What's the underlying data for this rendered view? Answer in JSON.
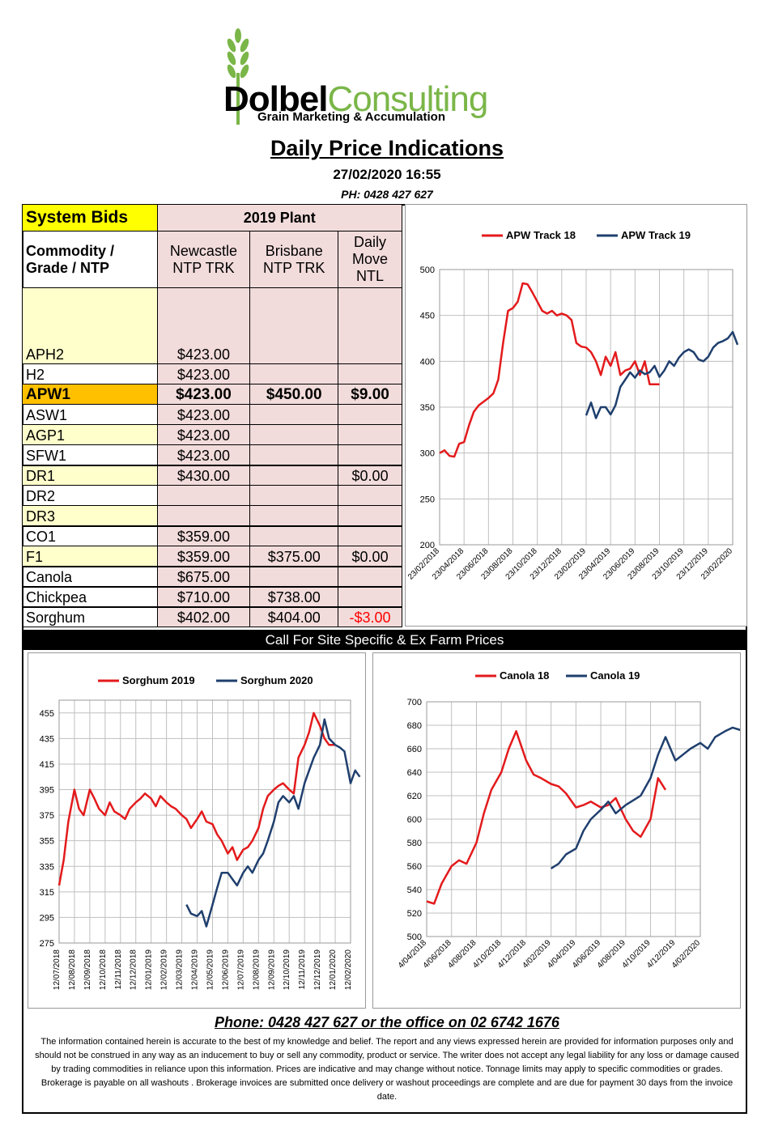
{
  "logo": {
    "brand_a": "Dolbel",
    "brand_b": "Consulting",
    "tagline": "Grain Marketing & Accumulation"
  },
  "header": {
    "title": "Daily Price Indications",
    "datetime": "27/02/2020 16:55",
    "phone": "PH: 0428 427 627"
  },
  "table": {
    "system_bids": "System Bids",
    "plant": "2019 Plant",
    "col_commodity": "Commodity / Grade / NTP",
    "col_newcastle": "Newcastle NTP TRK",
    "col_brisbane": "Brisbane NTP TRK",
    "col_move": "Daily Move NTL",
    "rows": [
      {
        "grade": "APH2",
        "newcastle": "$423.00",
        "brisbane": "",
        "move": ""
      },
      {
        "grade": "H2",
        "newcastle": "$423.00",
        "brisbane": "",
        "move": ""
      },
      {
        "grade": "APW1",
        "newcastle": "$423.00",
        "brisbane": "$450.00",
        "move": "$9.00"
      },
      {
        "grade": "ASW1",
        "newcastle": "$423.00",
        "brisbane": "",
        "move": ""
      },
      {
        "grade": "AGP1",
        "newcastle": "$423.00",
        "brisbane": "",
        "move": ""
      },
      {
        "grade": "SFW1",
        "newcastle": "$423.00",
        "brisbane": "",
        "move": ""
      },
      {
        "grade": "DR1",
        "newcastle": "$430.00",
        "brisbane": "",
        "move": "$0.00"
      },
      {
        "grade": "DR2",
        "newcastle": "",
        "brisbane": "",
        "move": ""
      },
      {
        "grade": "DR3",
        "newcastle": "",
        "brisbane": "",
        "move": ""
      },
      {
        "grade": "CO1",
        "newcastle": "$359.00",
        "brisbane": "",
        "move": ""
      },
      {
        "grade": "F1",
        "newcastle": "$359.00",
        "brisbane": "$375.00",
        "move": "$0.00"
      },
      {
        "grade": "Canola",
        "newcastle": "$675.00",
        "brisbane": "",
        "move": ""
      },
      {
        "grade": "Chickpea",
        "newcastle": "$710.00",
        "brisbane": "$738.00",
        "move": ""
      },
      {
        "grade": "Sorghum",
        "newcastle": "$402.00",
        "brisbane": "$404.00",
        "move": "-$3.00"
      }
    ]
  },
  "cta": "Call For Site Specific & Ex Farm Prices",
  "footer": {
    "phone": "Phone: 0428 427 627 or the office on 02 6742 1676",
    "disclaimer": "The information contained herein is accurate to the best of my knowledge and belief.  The report and any views expressed herein are provided for information purposes only and should not be construed in any way as an inducement to buy or sell any commodity, product or service. The writer does not accept any legal liability for any loss or damage caused by trading commodities in reliance upon this information. Prices are indicative and may change without notice. Tonnage limits may apply to specific commodities or grades.  Brokerage is payable on all washouts . Brokerage invoices are submitted once delivery or washout proceedings are complete and are due for payment 30 days from the invoice date."
  },
  "colors": {
    "red": "#e31a1c",
    "blue": "#1f3f6e",
    "pink": "#f2dcdb",
    "yellow": "#ffffcc",
    "orange": "#ffc000",
    "green": "#7ab648"
  },
  "chart_data": [
    {
      "type": "line",
      "ylim": [
        200,
        500
      ],
      "yticks": [
        200,
        250,
        300,
        350,
        400,
        450,
        500
      ],
      "xticks": [
        "23/02/2018",
        "23/04/2018",
        "23/06/2018",
        "23/08/2018",
        "23/10/2018",
        "23/12/2018",
        "23/02/2019",
        "23/04/2019",
        "23/06/2019",
        "23/08/2019",
        "23/10/2019",
        "23/12/2019",
        "23/02/2020"
      ],
      "legend_position": "top",
      "grid": true,
      "series": [
        {
          "name": "APW Track 18",
          "color": "#e31a1c",
          "x": [
            0,
            0.2,
            0.4,
            0.6,
            0.8,
            1,
            1.2,
            1.4,
            1.6,
            1.8,
            2,
            2.2,
            2.4,
            2.6,
            2.8,
            3,
            3.2,
            3.4,
            3.6,
            3.8,
            4,
            4.2,
            4.4,
            4.6,
            4.8,
            5,
            5.2,
            5.4,
            5.6,
            5.8,
            6,
            6.2,
            6.4,
            6.6,
            6.8,
            7,
            7.2,
            7.4,
            7.6,
            7.8,
            8,
            8.2,
            8.4,
            8.6,
            8.8,
            9,
            9.2,
            9.4,
            9.6,
            9.8
          ],
          "values": [
            300,
            303,
            297,
            296,
            310,
            312,
            330,
            345,
            352,
            356,
            360,
            365,
            380,
            420,
            455,
            458,
            465,
            485,
            484,
            475,
            465,
            455,
            452,
            455,
            450,
            452,
            450,
            445,
            420,
            416,
            415,
            410,
            400,
            385,
            405,
            395,
            410,
            385,
            390,
            392,
            400,
            385,
            400,
            375,
            375,
            375,
            null,
            null,
            null,
            null
          ]
        },
        {
          "name": "APW Track 19",
          "color": "#1f3f6e",
          "x": [
            4.8,
            5,
            5.2,
            5.4,
            5.6,
            5.8,
            6,
            6.2,
            6.4,
            6.6,
            6.8,
            7,
            7.2,
            7.4,
            7.6,
            7.8,
            8,
            8.2,
            8.4,
            8.6,
            8.8,
            9,
            9.2,
            9.4,
            9.6,
            9.8,
            10,
            10.2,
            10.4,
            10.6,
            10.8,
            11,
            11.2,
            11.4,
            11.6,
            11.8,
            12,
            12.2
          ],
          "values": [
            null,
            null,
            null,
            null,
            null,
            null,
            341,
            355,
            338,
            350,
            350,
            342,
            352,
            372,
            380,
            388,
            382,
            390,
            386,
            388,
            395,
            383,
            390,
            400,
            395,
            404,
            410,
            413,
            410,
            402,
            400,
            405,
            415,
            420,
            422,
            425,
            432,
            418
          ]
        }
      ]
    },
    {
      "type": "line",
      "ylim": [
        275,
        465
      ],
      "yticks": [
        275,
        295,
        315,
        335,
        355,
        375,
        395,
        415,
        435,
        455
      ],
      "xticks": [
        "12/07/2018",
        "12/08/2018",
        "12/09/2018",
        "12/10/2018",
        "12/11/2018",
        "12/12/2018",
        "12/01/2019",
        "12/02/2019",
        "12/03/2019",
        "12/04/2019",
        "12/05/2019",
        "12/06/2019",
        "12/07/2019",
        "12/08/2019",
        "12/09/2019",
        "12/10/2019",
        "12/11/2019",
        "12/12/2019",
        "12/01/2020",
        "12/02/2020"
      ],
      "legend_position": "top",
      "grid": true,
      "series": [
        {
          "name": "Sorghum 2019",
          "color": "#e31a1c",
          "x": [
            0,
            0.3,
            0.6,
            1,
            1.3,
            1.6,
            2,
            2.3,
            2.6,
            3,
            3.3,
            3.6,
            4,
            4.3,
            4.6,
            5,
            5.3,
            5.6,
            6,
            6.3,
            6.6,
            7,
            7.3,
            7.6,
            8,
            8.3,
            8.6,
            9,
            9.3,
            9.6,
            10,
            10.3,
            10.6,
            11,
            11.3,
            11.6,
            12,
            12.3,
            12.6,
            13,
            13.3,
            13.6,
            14,
            14.3,
            14.6,
            15,
            15.3,
            15.6,
            16,
            16.3,
            16.6,
            17,
            17.3,
            17.6,
            18
          ],
          "values": [
            320,
            340,
            370,
            395,
            380,
            375,
            395,
            388,
            380,
            375,
            385,
            378,
            375,
            372,
            380,
            385,
            388,
            392,
            388,
            382,
            390,
            385,
            382,
            380,
            375,
            372,
            365,
            372,
            378,
            370,
            368,
            360,
            355,
            345,
            350,
            340,
            348,
            350,
            355,
            365,
            380,
            390,
            395,
            398,
            400,
            395,
            392,
            420,
            430,
            440,
            455,
            445,
            435,
            430,
            430
          ]
        },
        {
          "name": "Sorghum 2020",
          "color": "#1f3f6e",
          "x": [
            8.3,
            8.6,
            9,
            9.3,
            9.6,
            10,
            10.3,
            10.6,
            11,
            11.3,
            11.6,
            12,
            12.3,
            12.6,
            13,
            13.3,
            13.6,
            14,
            14.3,
            14.6,
            15,
            15.3,
            15.6,
            16,
            16.3,
            16.6,
            17,
            17.3,
            17.6,
            18,
            18.3,
            18.6,
            19,
            19.3,
            19.6
          ],
          "values": [
            305,
            298,
            296,
            300,
            288,
            305,
            318,
            330,
            330,
            325,
            320,
            330,
            335,
            330,
            340,
            345,
            355,
            370,
            385,
            390,
            385,
            390,
            380,
            400,
            410,
            420,
            430,
            450,
            435,
            430,
            428,
            425,
            400,
            410,
            405
          ]
        }
      ]
    },
    {
      "type": "line",
      "ylim": [
        500,
        700
      ],
      "yticks": [
        500,
        520,
        540,
        560,
        580,
        600,
        620,
        640,
        660,
        680,
        700
      ],
      "xticks": [
        "4/04/2018",
        "4/06/2018",
        "4/08/2018",
        "4/10/2018",
        "4/12/2018",
        "4/02/2019",
        "4/04/2019",
        "4/06/2019",
        "4/08/2019",
        "4/10/2019",
        "4/12/2019",
        "4/02/2020"
      ],
      "legend_position": "top",
      "grid": true,
      "series": [
        {
          "name": "Canola 18",
          "color": "#e31a1c",
          "x": [
            0,
            0.3,
            0.6,
            1,
            1.3,
            1.6,
            2,
            2.3,
            2.6,
            3,
            3.3,
            3.6,
            4,
            4.3,
            4.6,
            5,
            5.3,
            5.6,
            6,
            6.3,
            6.6,
            7,
            7.3,
            7.6,
            8,
            8.3,
            8.6,
            9,
            9.3,
            9.6
          ],
          "values": [
            530,
            528,
            545,
            560,
            565,
            562,
            580,
            605,
            625,
            640,
            660,
            675,
            650,
            638,
            635,
            630,
            628,
            622,
            610,
            612,
            615,
            610,
            612,
            618,
            600,
            590,
            585,
            600,
            635,
            625
          ]
        },
        {
          "name": "Canola 19",
          "color": "#1f3f6e",
          "x": [
            5,
            5.3,
            5.6,
            6,
            6.3,
            6.6,
            7,
            7.3,
            7.6,
            8,
            8.3,
            8.6,
            9,
            9.3,
            9.6,
            10,
            10.3,
            10.6,
            11,
            11.3,
            11.6,
            12,
            12.3,
            12.6,
            13,
            13.3,
            13.6,
            14,
            14.3,
            14.6,
            15,
            15.3,
            15.6,
            16,
            16.3,
            16.6,
            17,
            17.3,
            17.6,
            18,
            18.3,
            18.6,
            19,
            19.3,
            19.6
          ],
          "values": [
            558,
            562,
            570,
            575,
            590,
            600,
            608,
            615,
            605,
            612,
            616,
            620,
            635,
            655,
            670,
            650,
            655,
            660,
            665,
            660,
            670,
            675,
            678,
            676,
            678,
            null,
            null,
            null,
            null,
            null,
            null,
            null,
            null,
            null,
            null,
            null,
            null,
            null,
            null,
            null,
            null,
            null,
            null,
            null,
            null
          ]
        }
      ]
    }
  ]
}
